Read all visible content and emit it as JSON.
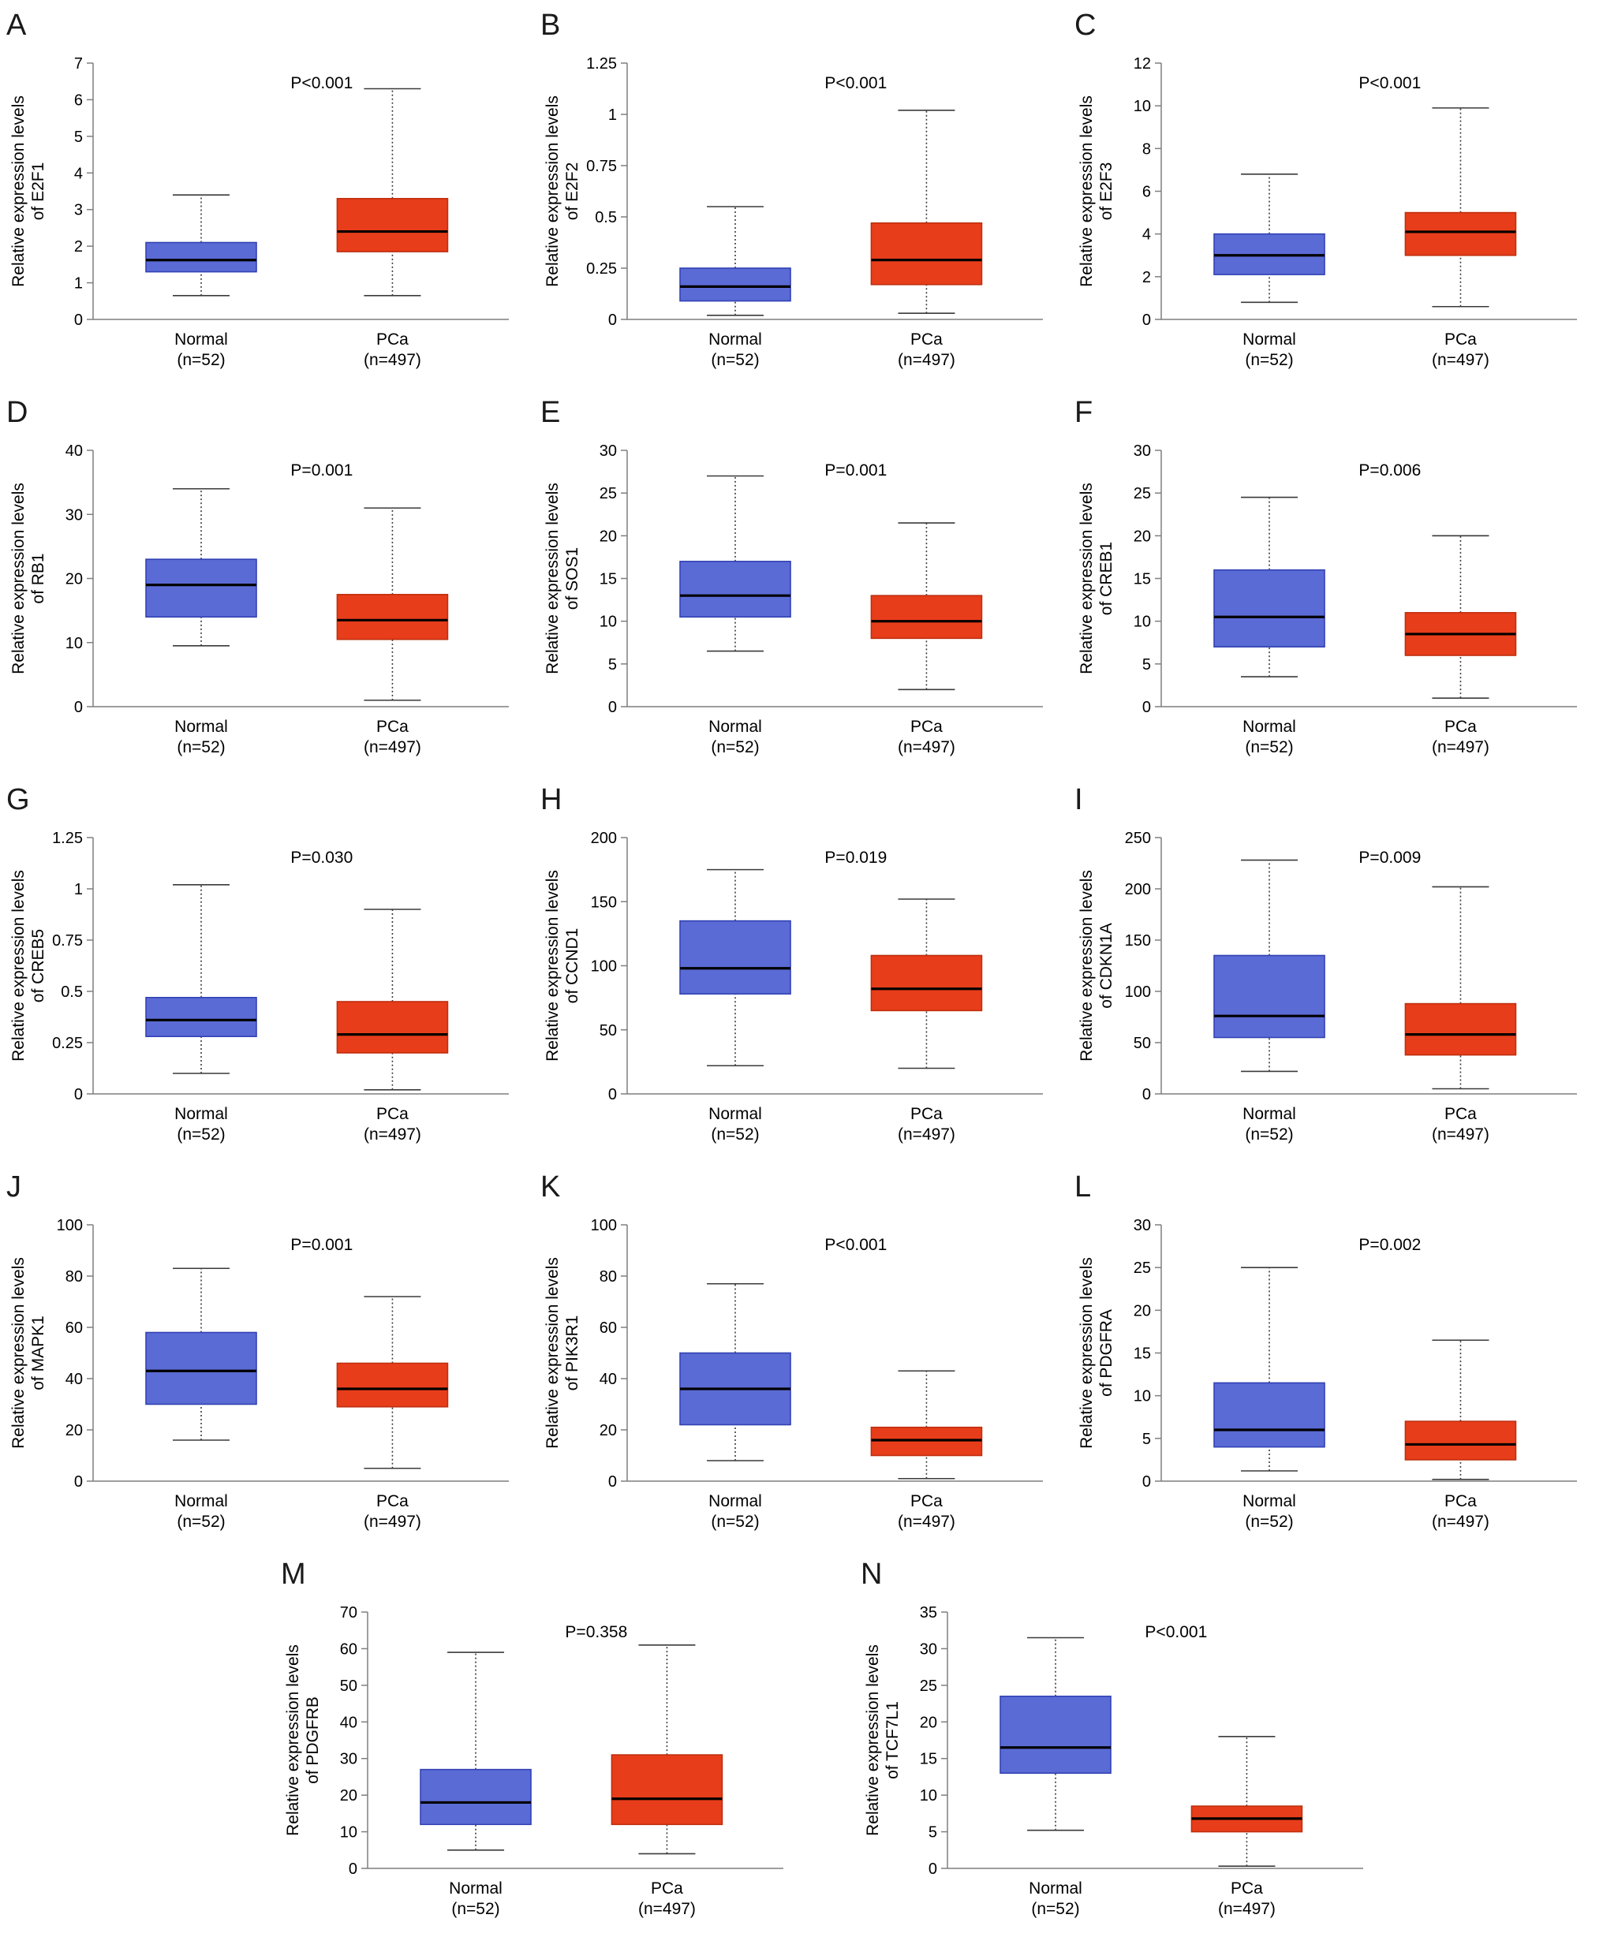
{
  "colors": {
    "normal_fill": "#5b6bd5",
    "normal_stroke": "#3242b4",
    "pca_fill": "#e83d1a",
    "pca_stroke": "#bf2e0e",
    "median": "#000000",
    "whisker": "#3a3a3a",
    "axis": "#7f7f7f"
  },
  "chart_data": [
    {
      "type": "box",
      "letter": "A",
      "gene": "E2F1",
      "p_label": "P<0.001",
      "ylabel_line1": "Relative expression levels",
      "ylabel_line2": "of E2F1",
      "ylim": [
        0,
        7
      ],
      "yticks": [
        "0",
        "1",
        "2",
        "3",
        "4",
        "5",
        "6",
        "7"
      ],
      "groups": [
        {
          "label": "Normal",
          "n_label": "(n=52)",
          "color": "normal",
          "whisker_low": 0.65,
          "q1": 1.3,
          "median": 1.62,
          "q3": 2.1,
          "whisker_high": 3.4
        },
        {
          "label": "PCa",
          "n_label": "(n=497)",
          "color": "pca",
          "whisker_low": 0.65,
          "q1": 1.85,
          "median": 2.4,
          "q3": 3.3,
          "whisker_high": 6.3
        }
      ]
    },
    {
      "type": "box",
      "letter": "B",
      "gene": "E2F2",
      "p_label": "P<0.001",
      "ylabel_line1": "Relative expression levels",
      "ylabel_line2": "of E2F2",
      "ylim": [
        0,
        1.25
      ],
      "yticks": [
        "0",
        "0.25",
        "0.5",
        "0.75",
        "1",
        "1.25"
      ],
      "groups": [
        {
          "label": "Normal",
          "n_label": "(n=52)",
          "color": "normal",
          "whisker_low": 0.02,
          "q1": 0.09,
          "median": 0.16,
          "q3": 0.25,
          "whisker_high": 0.55
        },
        {
          "label": "PCa",
          "n_label": "(n=497)",
          "color": "pca",
          "whisker_low": 0.03,
          "q1": 0.17,
          "median": 0.29,
          "q3": 0.47,
          "whisker_high": 1.02
        }
      ]
    },
    {
      "type": "box",
      "letter": "C",
      "gene": "E2F3",
      "p_label": "P<0.001",
      "ylabel_line1": "Relative expression levels",
      "ylabel_line2": "of E2F3",
      "ylim": [
        0,
        12
      ],
      "yticks": [
        "0",
        "2",
        "4",
        "6",
        "8",
        "10",
        "12"
      ],
      "groups": [
        {
          "label": "Normal",
          "n_label": "(n=52)",
          "color": "normal",
          "whisker_low": 0.8,
          "q1": 2.1,
          "median": 3.0,
          "q3": 4.0,
          "whisker_high": 6.8
        },
        {
          "label": "PCa",
          "n_label": "(n=497)",
          "color": "pca",
          "whisker_low": 0.6,
          "q1": 3.0,
          "median": 4.1,
          "q3": 5.0,
          "whisker_high": 9.9
        }
      ]
    },
    {
      "type": "box",
      "letter": "D",
      "gene": "RB1",
      "p_label": "P=0.001",
      "ylabel_line1": "Relative expression levels",
      "ylabel_line2": "of RB1",
      "ylim": [
        0,
        40
      ],
      "yticks": [
        "0",
        "10",
        "20",
        "30",
        "40"
      ],
      "groups": [
        {
          "label": "Normal",
          "n_label": "(n=52)",
          "color": "normal",
          "whisker_low": 9.5,
          "q1": 14,
          "median": 19,
          "q3": 23,
          "whisker_high": 34
        },
        {
          "label": "PCa",
          "n_label": "(n=497)",
          "color": "pca",
          "whisker_low": 1,
          "q1": 10.5,
          "median": 13.5,
          "q3": 17.5,
          "whisker_high": 31
        }
      ]
    },
    {
      "type": "box",
      "letter": "E",
      "gene": "SOS1",
      "p_label": "P=0.001",
      "ylabel_line1": "Relative expression levels",
      "ylabel_line2": "of SOS1",
      "ylim": [
        0,
        30
      ],
      "yticks": [
        "0",
        "5",
        "10",
        "15",
        "20",
        "25",
        "30"
      ],
      "groups": [
        {
          "label": "Normal",
          "n_label": "(n=52)",
          "color": "normal",
          "whisker_low": 6.5,
          "q1": 10.5,
          "median": 13,
          "q3": 17,
          "whisker_high": 27
        },
        {
          "label": "PCa",
          "n_label": "(n=497)",
          "color": "pca",
          "whisker_low": 2,
          "q1": 8,
          "median": 10,
          "q3": 13,
          "whisker_high": 21.5
        }
      ]
    },
    {
      "type": "box",
      "letter": "F",
      "gene": "CREB1",
      "p_label": "P=0.006",
      "ylabel_line1": "Relative expression levels",
      "ylabel_line2": "of CREB1",
      "ylim": [
        0,
        30
      ],
      "yticks": [
        "0",
        "5",
        "10",
        "15",
        "20",
        "25",
        "30"
      ],
      "groups": [
        {
          "label": "Normal",
          "n_label": "(n=52)",
          "color": "normal",
          "whisker_low": 3.5,
          "q1": 7,
          "median": 10.5,
          "q3": 16,
          "whisker_high": 24.5
        },
        {
          "label": "PCa",
          "n_label": "(n=497)",
          "color": "pca",
          "whisker_low": 1,
          "q1": 6,
          "median": 8.5,
          "q3": 11,
          "whisker_high": 20
        }
      ]
    },
    {
      "type": "box",
      "letter": "G",
      "gene": "CREB5",
      "p_label": "P=0.030",
      "ylabel_line1": "Relative expression levels",
      "ylabel_line2": "of CREB5",
      "ylim": [
        0,
        1.25
      ],
      "yticks": [
        "0",
        "0.25",
        "0.5",
        "0.75",
        "1",
        "1.25"
      ],
      "groups": [
        {
          "label": "Normal",
          "n_label": "(n=52)",
          "color": "normal",
          "whisker_low": 0.1,
          "q1": 0.28,
          "median": 0.36,
          "q3": 0.47,
          "whisker_high": 1.02
        },
        {
          "label": "PCa",
          "n_label": "(n=497)",
          "color": "pca",
          "whisker_low": 0.02,
          "q1": 0.2,
          "median": 0.29,
          "q3": 0.45,
          "whisker_high": 0.9
        }
      ]
    },
    {
      "type": "box",
      "letter": "H",
      "gene": "CCND1",
      "p_label": "P=0.019",
      "ylabel_line1": "Relative expression levels",
      "ylabel_line2": "of CCND1",
      "ylim": [
        0,
        200
      ],
      "yticks": [
        "0",
        "50",
        "100",
        "150",
        "200"
      ],
      "groups": [
        {
          "label": "Normal",
          "n_label": "(n=52)",
          "color": "normal",
          "whisker_low": 22,
          "q1": 78,
          "median": 98,
          "q3": 135,
          "whisker_high": 175
        },
        {
          "label": "PCa",
          "n_label": "(n=497)",
          "color": "pca",
          "whisker_low": 20,
          "q1": 65,
          "median": 82,
          "q3": 108,
          "whisker_high": 152
        }
      ]
    },
    {
      "type": "box",
      "letter": "I",
      "gene": "CDKN1A",
      "p_label": "P=0.009",
      "ylabel_line1": "Relative expression levels",
      "ylabel_line2": "of CDKN1A",
      "ylim": [
        0,
        250
      ],
      "yticks": [
        "0",
        "50",
        "100",
        "150",
        "200",
        "250"
      ],
      "groups": [
        {
          "label": "Normal",
          "n_label": "(n=52)",
          "color": "normal",
          "whisker_low": 22,
          "q1": 55,
          "median": 76,
          "q3": 135,
          "whisker_high": 228
        },
        {
          "label": "PCa",
          "n_label": "(n=497)",
          "color": "pca",
          "whisker_low": 5,
          "q1": 38,
          "median": 58,
          "q3": 88,
          "whisker_high": 202
        }
      ]
    },
    {
      "type": "box",
      "letter": "J",
      "gene": "MAPK1",
      "p_label": "P=0.001",
      "ylabel_line1": "Relative expression levels",
      "ylabel_line2": "of MAPK1",
      "ylim": [
        0,
        100
      ],
      "yticks": [
        "0",
        "20",
        "40",
        "60",
        "80",
        "100"
      ],
      "groups": [
        {
          "label": "Normal",
          "n_label": "(n=52)",
          "color": "normal",
          "whisker_low": 16,
          "q1": 30,
          "median": 43,
          "q3": 58,
          "whisker_high": 83
        },
        {
          "label": "PCa",
          "n_label": "(n=497)",
          "color": "pca",
          "whisker_low": 5,
          "q1": 29,
          "median": 36,
          "q3": 46,
          "whisker_high": 72
        }
      ]
    },
    {
      "type": "box",
      "letter": "K",
      "gene": "PIK3R1",
      "p_label": "P<0.001",
      "ylabel_line1": "Relative expression levels",
      "ylabel_line2": "of PIK3R1",
      "ylim": [
        0,
        100
      ],
      "yticks": [
        "0",
        "20",
        "40",
        "60",
        "80",
        "100"
      ],
      "groups": [
        {
          "label": "Normal",
          "n_label": "(n=52)",
          "color": "normal",
          "whisker_low": 8,
          "q1": 22,
          "median": 36,
          "q3": 50,
          "whisker_high": 77
        },
        {
          "label": "PCa",
          "n_label": "(n=497)",
          "color": "pca",
          "whisker_low": 1,
          "q1": 10,
          "median": 16,
          "q3": 21,
          "whisker_high": 43
        }
      ]
    },
    {
      "type": "box",
      "letter": "L",
      "gene": "PDGFRA",
      "p_label": "P=0.002",
      "ylabel_line1": "Relative expression levels",
      "ylabel_line2": "of PDGFRA",
      "ylim": [
        0,
        30
      ],
      "yticks": [
        "0",
        "5",
        "10",
        "15",
        "20",
        "25",
        "30"
      ],
      "groups": [
        {
          "label": "Normal",
          "n_label": "(n=52)",
          "color": "normal",
          "whisker_low": 1.2,
          "q1": 4,
          "median": 6,
          "q3": 11.5,
          "whisker_high": 25
        },
        {
          "label": "PCa",
          "n_label": "(n=497)",
          "color": "pca",
          "whisker_low": 0.2,
          "q1": 2.5,
          "median": 4.3,
          "q3": 7,
          "whisker_high": 16.5
        }
      ]
    },
    {
      "type": "box",
      "letter": "M",
      "gene": "PDGFRB",
      "p_label": "P=0.358",
      "ylabel_line1": "Relative expression levels",
      "ylabel_line2": "of PDGFRB",
      "ylim": [
        0,
        70
      ],
      "yticks": [
        "0",
        "10",
        "20",
        "30",
        "40",
        "50",
        "60",
        "70"
      ],
      "groups": [
        {
          "label": "Normal",
          "n_label": "(n=52)",
          "color": "normal",
          "whisker_low": 5,
          "q1": 12,
          "median": 18,
          "q3": 27,
          "whisker_high": 59
        },
        {
          "label": "PCa",
          "n_label": "(n=497)",
          "color": "pca",
          "whisker_low": 4,
          "q1": 12,
          "median": 19,
          "q3": 31,
          "whisker_high": 61
        }
      ]
    },
    {
      "type": "box",
      "letter": "N",
      "gene": "TCF7L1",
      "p_label": "P<0.001",
      "ylabel_line1": "Relative expression levels",
      "ylabel_line2": "of TCF7L1",
      "ylim": [
        0,
        35
      ],
      "yticks": [
        "0",
        "5",
        "10",
        "15",
        "20",
        "25",
        "30",
        "35"
      ],
      "groups": [
        {
          "label": "Normal",
          "n_label": "(n=52)",
          "color": "normal",
          "whisker_low": 5.2,
          "q1": 13,
          "median": 16.5,
          "q3": 23.5,
          "whisker_high": 31.5
        },
        {
          "label": "PCa",
          "n_label": "(n=497)",
          "color": "pca",
          "whisker_low": 0.3,
          "q1": 5,
          "median": 6.8,
          "q3": 8.5,
          "whisker_high": 18
        }
      ]
    }
  ]
}
